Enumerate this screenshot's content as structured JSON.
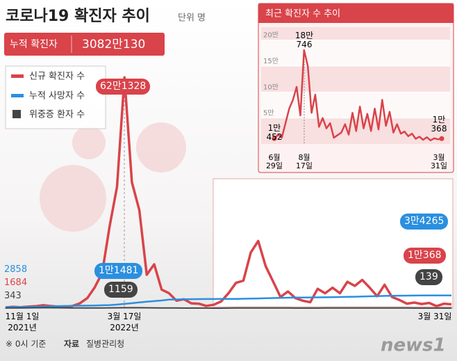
{
  "chart_data": [
    {
      "type": "line",
      "title": "코로나19 확진자 추이",
      "unit": "단위 명",
      "summary": {
        "label": "누적 확진자",
        "value": "3082만130"
      },
      "categories": [
        "11월 1일\n2021년",
        null,
        null,
        null,
        null,
        null,
        null,
        null,
        null,
        null,
        null,
        null,
        null,
        null,
        null,
        null,
        "3월 17일\n2022년",
        null,
        null,
        null,
        null,
        null,
        null,
        null,
        null,
        null,
        null,
        null,
        null,
        null,
        null,
        null,
        null,
        null,
        null,
        null,
        null,
        null,
        null,
        null,
        null,
        null,
        null,
        null,
        null,
        null,
        null,
        null,
        null,
        null,
        null,
        null,
        null,
        null,
        null,
        null,
        null,
        null,
        null,
        null,
        "3월 31일"
      ],
      "ylim": [
        0,
        650000
      ],
      "series": [
        {
          "name": "신규 확진자 수",
          "color": "#d9434a",
          "values": [
            1684,
            3500,
            2500,
            4000,
            5100,
            7800,
            5800,
            4400,
            3300,
            5800,
            13000,
            27000,
            56000,
            95000,
            220000,
            327000,
            621328,
            339000,
            264000,
            90000,
            118000,
            50000,
            40000,
            20000,
            24000,
            13000,
            12000,
            6000,
            9000,
            18000,
            40000,
            68000,
            74000,
            150000,
            180746,
            113000,
            72000,
            30000,
            45000,
            27000,
            20000,
            16000,
            52000,
            40000,
            55000,
            40000,
            71000,
            60000,
            76000,
            55000,
            32000,
            63000,
            30000,
            22000,
            12000,
            15000,
            11000,
            14000,
            5500,
            12000,
            10368
          ],
          "value_labels": [
            "1684",
            null,
            null,
            null,
            null,
            null,
            null,
            null,
            null,
            null,
            null,
            null,
            null,
            null,
            null,
            null,
            "62만1328",
            null,
            null,
            null,
            null,
            null,
            null,
            null,
            null,
            null,
            null,
            null,
            null,
            null,
            null,
            null,
            null,
            null,
            null,
            null,
            null,
            null,
            null,
            null,
            null,
            null,
            null,
            null,
            null,
            null,
            null,
            null,
            null,
            null,
            null,
            null,
            null,
            null,
            null,
            null,
            null,
            null,
            null,
            null,
            "1만368"
          ]
        },
        {
          "name": "누적 사망자 수",
          "color": "#2b8fe0",
          "values": [
            2858,
            3033,
            3230,
            3400,
            3800,
            4300,
            4900,
            5400,
            5900,
            6200,
            6500,
            6800,
            7100,
            7600,
            8300,
            9600,
            11481,
            13300,
            15400,
            17200,
            19000,
            20600,
            22800,
            23500,
            23900,
            24200,
            24400,
            24500,
            24600,
            24650,
            24800,
            24990,
            25200,
            25750,
            26000,
            26800,
            27200,
            27700,
            28100,
            28400,
            28600,
            28800,
            29000,
            29300,
            29500,
            29900,
            30300,
            30800,
            31300,
            31800,
            32400,
            32900,
            33300,
            33600,
            33800,
            33950,
            34050,
            34150,
            34200,
            34230,
            34265
          ],
          "value_labels": [
            "2858",
            null,
            null,
            null,
            null,
            null,
            null,
            null,
            null,
            null,
            null,
            null,
            null,
            null,
            null,
            null,
            "1만1481",
            null,
            null,
            null,
            null,
            null,
            null,
            null,
            null,
            null,
            null,
            null,
            null,
            null,
            null,
            null,
            null,
            null,
            null,
            null,
            null,
            null,
            null,
            null,
            null,
            null,
            null,
            null,
            null,
            null,
            null,
            null,
            null,
            null,
            null,
            null,
            null,
            null,
            null,
            null,
            null,
            null,
            null,
            null,
            "3만4265"
          ]
        },
        {
          "name": "위중증 환자 수",
          "color": "#444444",
          "values": [
            343,
            470,
            590,
            730,
            900,
            1050,
            1080,
            900,
            720,
            530,
            420,
            290,
            300,
            480,
            700,
            1000,
            1159,
            1100,
            1100,
            1000,
            800,
            590,
            420,
            300,
            230,
            150,
            110,
            98,
            70,
            90,
            200,
            330,
            400,
            500,
            560,
            520,
            440,
            380,
            350,
            280,
            240,
            210,
            230,
            330,
            420,
            470,
            500,
            530,
            560,
            540,
            520,
            470,
            420,
            370,
            300,
            250,
            190,
            170,
            150,
            140,
            139
          ],
          "value_labels": [
            "343",
            null,
            null,
            null,
            null,
            null,
            null,
            null,
            null,
            null,
            null,
            null,
            null,
            null,
            null,
            null,
            "1159",
            null,
            null,
            null,
            null,
            null,
            null,
            null,
            null,
            null,
            null,
            null,
            null,
            null,
            null,
            null,
            null,
            null,
            null,
            null,
            null,
            null,
            null,
            null,
            null,
            null,
            null,
            null,
            null,
            null,
            null,
            null,
            null,
            null,
            null,
            null,
            null,
            null,
            null,
            null,
            null,
            null,
            null,
            null,
            "139"
          ]
        }
      ]
    },
    {
      "type": "line",
      "title": "최근 확진자 수 추이",
      "categories": [
        "6월\n29일",
        null,
        null,
        null,
        null,
        null,
        null,
        null,
        "8월\n17일",
        null,
        null,
        null,
        null,
        null,
        null,
        null,
        null,
        null,
        null,
        null,
        null,
        null,
        null,
        null,
        null,
        null,
        null,
        null,
        null,
        null,
        null,
        null,
        null,
        null,
        null,
        null,
        null,
        null,
        null,
        null,
        null,
        null,
        null,
        null,
        null,
        "3월\n31일"
      ],
      "ylim": [
        0,
        225000
      ],
      "yticks": [
        {
          "value": 50000,
          "label": "5만"
        },
        {
          "value": 100000,
          "label": "10만"
        },
        {
          "value": 150000,
          "label": "15만"
        },
        {
          "value": 200000,
          "label": "20만"
        }
      ],
      "grid": true,
      "series": [
        {
          "color": "#d9434a",
          "values": [
            10452,
            18000,
            12000,
            40000,
            68000,
            85000,
            110000,
            55000,
            180746,
            150000,
            60000,
            95000,
            33000,
            50000,
            30000,
            40000,
            12000,
            17000,
            22000,
            38000,
            18000,
            60000,
            25000,
            72000,
            30000,
            58000,
            25000,
            68000,
            28000,
            85000,
            35000,
            62000,
            22000,
            38000,
            20000,
            24000,
            15000,
            20000,
            10000,
            14000,
            8000,
            13000,
            7000,
            11000,
            9000,
            10368
          ],
          "value_labels": [
            "1만\n452",
            null,
            null,
            null,
            null,
            null,
            null,
            null,
            "18만\n746",
            null,
            null,
            null,
            null,
            null,
            null,
            null,
            null,
            null,
            null,
            null,
            null,
            null,
            null,
            null,
            null,
            null,
            null,
            null,
            null,
            null,
            null,
            null,
            null,
            null,
            null,
            null,
            null,
            null,
            null,
            null,
            null,
            null,
            null,
            null,
            null,
            "1만\n368"
          ]
        }
      ]
    }
  ],
  "footer": {
    "note": "※ 0시 기준",
    "source_label": "자료",
    "source": "질병관리청",
    "logo": "news1"
  }
}
